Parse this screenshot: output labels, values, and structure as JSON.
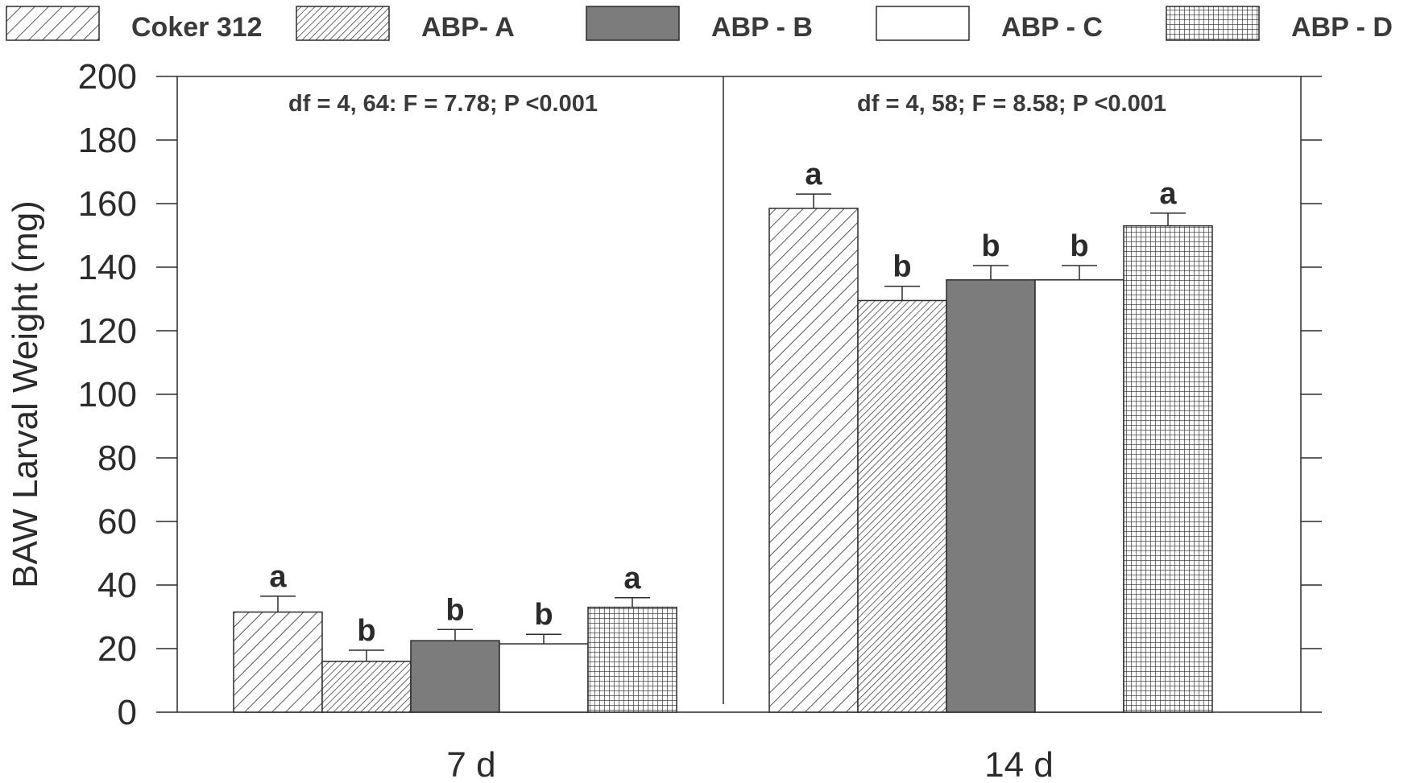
{
  "chart_data": {
    "type": "bar",
    "ylabel": "BAW Larval Weight (mg)",
    "xlabel": "",
    "ylim": [
      0,
      200
    ],
    "yticks": [
      "0",
      "20",
      "40",
      "60",
      "80",
      "100",
      "120",
      "140",
      "160",
      "180",
      "200"
    ],
    "categories": [
      "7 d",
      "14 d"
    ],
    "series": [
      {
        "name": "Coker 312",
        "values": [
          31.5,
          158.5
        ],
        "errors": [
          5.0,
          4.5
        ],
        "letters": [
          "a",
          "a"
        ],
        "pattern": "diag-wide"
      },
      {
        "name": "ABP- A",
        "values": [
          16.0,
          129.5
        ],
        "errors": [
          3.5,
          4.5
        ],
        "letters": [
          "b",
          "b"
        ],
        "pattern": "diag-dense"
      },
      {
        "name": "ABP - B",
        "values": [
          22.5,
          136.0
        ],
        "errors": [
          3.5,
          4.5
        ],
        "letters": [
          "b",
          "b"
        ],
        "pattern": "gray"
      },
      {
        "name": "ABP - C",
        "values": [
          21.5,
          136.0
        ],
        "errors": [
          3.0,
          4.5
        ],
        "letters": [
          "b",
          "b"
        ],
        "pattern": "white"
      },
      {
        "name": "ABP - D",
        "values": [
          33.0,
          153.0
        ],
        "errors": [
          3.0,
          4.0
        ],
        "letters": [
          "a",
          "a"
        ],
        "pattern": "grid"
      }
    ],
    "annotations": [
      "df = 4, 64: F = 7.78; P <0.001",
      "df = 4, 58; F = 8.58;  P <0.001"
    ],
    "legend_position": "top",
    "grid": false
  },
  "colors": {
    "gray_fill": "#7c7c7d",
    "stroke": "#2b2b2b"
  }
}
